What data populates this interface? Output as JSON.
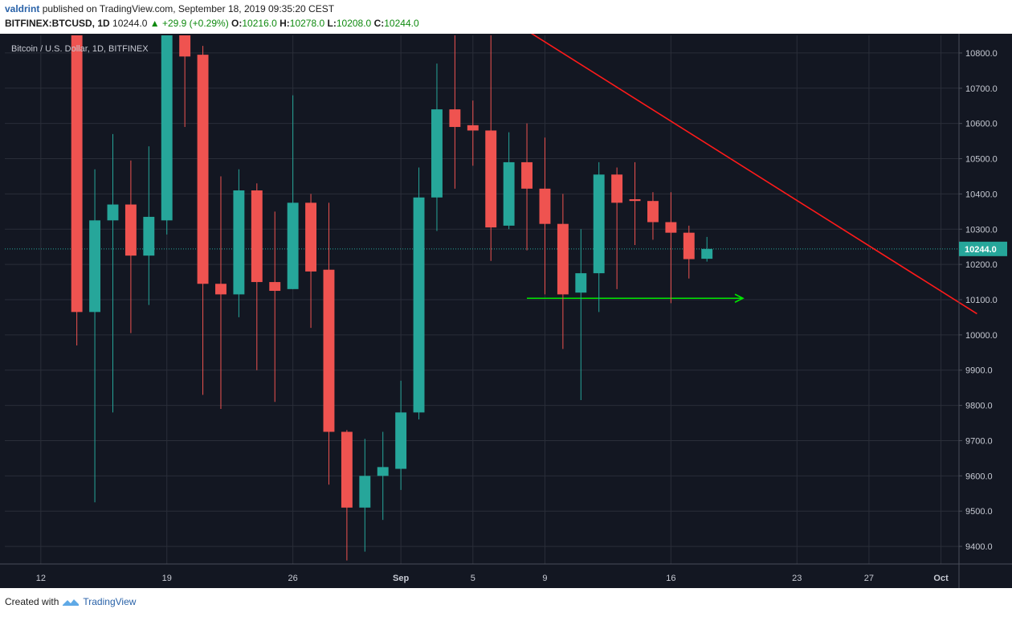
{
  "header": {
    "author": "valdrint",
    "published_text": "published on TradingView.com, September 18, 2019 09:35:20 CEST",
    "symbol": "BITFINEX:BTCUSD, 1D",
    "last": "10244.0",
    "change": "▲ +29.9 (+0.29%)",
    "o_label": "O:",
    "o_value": "10216.0",
    "h_label": "H:",
    "h_value": "10278.0",
    "l_label": "L:",
    "l_value": "10208.0",
    "c_label": "C:",
    "c_value": "10244.0"
  },
  "footer": {
    "created_with": "Created with",
    "brand": "TradingView"
  },
  "colors": {
    "background": "#131722",
    "up": "#26a69a",
    "down": "#ef5350",
    "grid": "#2a2e39",
    "trendline": "#ff1a1a",
    "support_arrow": "#00e600",
    "axis_text": "#c7cad3",
    "price_label_bg": "#26a69a"
  },
  "chart_data": {
    "type": "candlestick",
    "title": "Bitcoin / U.S. Dollar, 1D, BITFINEX",
    "x_tick_labels": [
      {
        "date": "2019-08-12",
        "label": "12"
      },
      {
        "date": "2019-08-19",
        "label": "19"
      },
      {
        "date": "2019-08-26",
        "label": "26"
      },
      {
        "date": "2019-09-01",
        "label": "Sep"
      },
      {
        "date": "2019-09-05",
        "label": "5"
      },
      {
        "date": "2019-09-09",
        "label": "9"
      },
      {
        "date": "2019-09-16",
        "label": "16"
      },
      {
        "date": "2019-09-23",
        "label": "23"
      },
      {
        "date": "2019-09-27",
        "label": "27"
      },
      {
        "date": "2019-10-01",
        "label": "Oct"
      }
    ],
    "x_range": [
      "2019-08-10",
      "2019-10-02"
    ],
    "ylim": [
      9350,
      10850
    ],
    "y_tick_labels": [
      "9400.0",
      "9500.0",
      "9600.0",
      "9700.0",
      "9800.0",
      "9900.0",
      "10000.0",
      "10100.0",
      "10200.0",
      "10300.0",
      "10400.0",
      "10500.0",
      "10600.0",
      "10700.0",
      "10800.0"
    ],
    "y_tick_values": [
      9400,
      9500,
      9600,
      9700,
      9800,
      9900,
      10000,
      10100,
      10200,
      10300,
      10400,
      10500,
      10600,
      10700,
      10800
    ],
    "current_price": 10244,
    "current_price_label": "10244.0",
    "grid": true,
    "candles": [
      {
        "date": "2019-08-14",
        "o": 10850,
        "h": 10900,
        "l": 9970,
        "c": 10065
      },
      {
        "date": "2019-08-15",
        "o": 10065,
        "h": 10470,
        "l": 9525,
        "c": 10325
      },
      {
        "date": "2019-08-16",
        "o": 10325,
        "h": 10570,
        "l": 9780,
        "c": 10370
      },
      {
        "date": "2019-08-17",
        "o": 10370,
        "h": 10495,
        "l": 10005,
        "c": 10225
      },
      {
        "date": "2019-08-18",
        "o": 10225,
        "h": 10535,
        "l": 10085,
        "c": 10335
      },
      {
        "date": "2019-08-19",
        "o": 10325,
        "h": 10900,
        "l": 10285,
        "c": 10900
      },
      {
        "date": "2019-08-20",
        "o": 10900,
        "h": 10950,
        "l": 10590,
        "c": 10790
      },
      {
        "date": "2019-08-21",
        "o": 10795,
        "h": 10820,
        "l": 9830,
        "c": 10145
      },
      {
        "date": "2019-08-22",
        "o": 10145,
        "h": 10450,
        "l": 9790,
        "c": 10115
      },
      {
        "date": "2019-08-23",
        "o": 10115,
        "h": 10470,
        "l": 10050,
        "c": 10410
      },
      {
        "date": "2019-08-24",
        "o": 10410,
        "h": 10430,
        "l": 9900,
        "c": 10150
      },
      {
        "date": "2019-08-25",
        "o": 10150,
        "h": 10350,
        "l": 9810,
        "c": 10125
      },
      {
        "date": "2019-08-26",
        "o": 10130,
        "h": 10680,
        "l": 10130,
        "c": 10375
      },
      {
        "date": "2019-08-27",
        "o": 10375,
        "h": 10400,
        "l": 10020,
        "c": 10180
      },
      {
        "date": "2019-08-28",
        "o": 10185,
        "h": 10375,
        "l": 9575,
        "c": 9725
      },
      {
        "date": "2019-08-29",
        "o": 9725,
        "h": 9730,
        "l": 9360,
        "c": 9510
      },
      {
        "date": "2019-08-30",
        "o": 9510,
        "h": 9705,
        "l": 9385,
        "c": 9600
      },
      {
        "date": "2019-08-31",
        "o": 9600,
        "h": 9725,
        "l": 9475,
        "c": 9625
      },
      {
        "date": "2019-09-01",
        "o": 9620,
        "h": 9870,
        "l": 9560,
        "c": 9780
      },
      {
        "date": "2019-09-02",
        "o": 9780,
        "h": 10475,
        "l": 9760,
        "c": 10390
      },
      {
        "date": "2019-09-03",
        "o": 10390,
        "h": 10770,
        "l": 10295,
        "c": 10640
      },
      {
        "date": "2019-09-04",
        "o": 10640,
        "h": 10875,
        "l": 10415,
        "c": 10590
      },
      {
        "date": "2019-09-05",
        "o": 10595,
        "h": 10665,
        "l": 10480,
        "c": 10580
      },
      {
        "date": "2019-09-06",
        "o": 10580,
        "h": 10910,
        "l": 10210,
        "c": 10305
      },
      {
        "date": "2019-09-07",
        "o": 10310,
        "h": 10575,
        "l": 10300,
        "c": 10490
      },
      {
        "date": "2019-09-08",
        "o": 10490,
        "h": 10600,
        "l": 10240,
        "c": 10415
      },
      {
        "date": "2019-09-09",
        "o": 10415,
        "h": 10560,
        "l": 10115,
        "c": 10315
      },
      {
        "date": "2019-09-10",
        "o": 10315,
        "h": 10400,
        "l": 9960,
        "c": 10115
      },
      {
        "date": "2019-09-11",
        "o": 10120,
        "h": 10300,
        "l": 9815,
        "c": 10175
      },
      {
        "date": "2019-09-12",
        "o": 10175,
        "h": 10490,
        "l": 10065,
        "c": 10455
      },
      {
        "date": "2019-09-13",
        "o": 10455,
        "h": 10475,
        "l": 10130,
        "c": 10375
      },
      {
        "date": "2019-09-14",
        "o": 10385,
        "h": 10490,
        "l": 10255,
        "c": 10380
      },
      {
        "date": "2019-09-15",
        "o": 10380,
        "h": 10405,
        "l": 10270,
        "c": 10320
      },
      {
        "date": "2019-09-16",
        "o": 10320,
        "h": 10405,
        "l": 10090,
        "c": 10290
      },
      {
        "date": "2019-09-17",
        "o": 10290,
        "h": 10310,
        "l": 10160,
        "c": 10215
      },
      {
        "date": "2019-09-18",
        "o": 10216,
        "h": 10278,
        "l": 10208,
        "c": 10244
      }
    ],
    "trendline": {
      "from": {
        "date": "2019-09-05",
        "price": 10960
      },
      "to": {
        "date": "2019-10-03",
        "price": 10060
      }
    },
    "support_arrow": {
      "from": {
        "date": "2019-09-08",
        "price": 10104
      },
      "to": {
        "date": "2019-09-20",
        "price": 10104
      }
    }
  }
}
